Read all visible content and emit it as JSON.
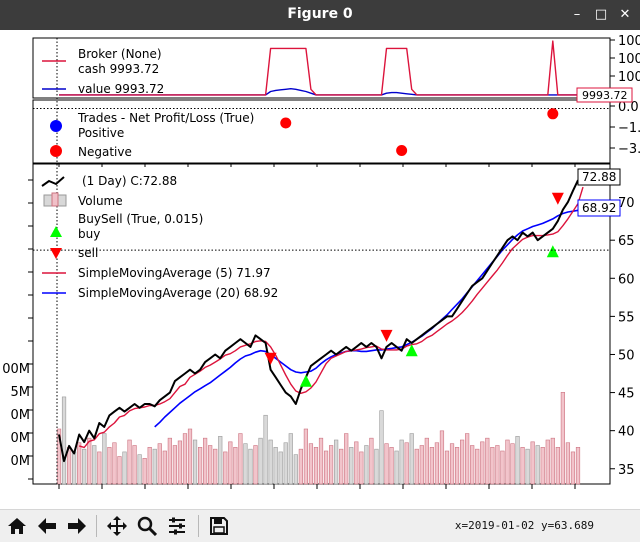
{
  "window": {
    "title": "Figure 0",
    "minimize": "–",
    "maximize": "□",
    "close": "✕"
  },
  "status": {
    "coords": "x=2019-01-02 y=63.689"
  },
  "colors": {
    "accent": "#dc143c",
    "value_line": "#0000cc",
    "price": "#000000",
    "sma5": "#dc143c",
    "sma20": "#0000ff",
    "buy": "#00ff00",
    "sell": "#ff0000",
    "positive": "#0000ff",
    "negative": "#ff0000",
    "volume_up": "#cc7380",
    "volume_down": "#b4b4b4"
  },
  "toolbar": {
    "home": "home-icon",
    "back": "back-arrow-icon",
    "forward": "forward-arrow-icon",
    "pan": "pan-icon",
    "zoom": "zoom-icon",
    "configure": "configure-subplots-icon",
    "save": "save-icon"
  },
  "broker_panel": {
    "legend_title": "Broker (None)",
    "cash_label": "cash 9993.72",
    "value_label": "value 9993.72",
    "badge": "9993.72",
    "yticks": [
      "100",
      "100",
      "100"
    ]
  },
  "trades_panel": {
    "legend_title": "Trades - Net Profit/Loss (True)",
    "positive_label": "Positive",
    "negative_label": "Negative",
    "yticks": [
      "0.0",
      "−1.",
      "−3."
    ]
  },
  "price_panel": {
    "data_label": "(1 Day) C:72.88",
    "volume_label": "Volume",
    "buysell_label": "BuySell (True, 0.015)",
    "buy_label": "buy",
    "sell_label": "sell",
    "sma5_label": "SimpleMovingAverage (5) 71.97",
    "sma20_label": "SimpleMovingAverage (20) 68.92",
    "close_badge": "72.88",
    "sma20_badge": "68.92",
    "yticks": [
      "70",
      "65",
      "60",
      "55",
      "50",
      "45",
      "40",
      "35"
    ],
    "volume_ticks": [
      "00M",
      "5M",
      "0M",
      "0M",
      "0M"
    ]
  },
  "chart_data": {
    "type": "line",
    "title": "",
    "grid": true,
    "price": {
      "ylim": [
        33,
        75
      ],
      "close": [
        39.5,
        36,
        38,
        37,
        39.5,
        38.5,
        40,
        39,
        41,
        40.5,
        42,
        42.5,
        43,
        42.5,
        43,
        43.5,
        43,
        43.5,
        43.5,
        43.2,
        44,
        44.5,
        45,
        46.5,
        47,
        47.5,
        48,
        47.5,
        48,
        49,
        49.5,
        50,
        49.5,
        50.5,
        51,
        51.5,
        52,
        51.5,
        51,
        52.5,
        52,
        51.5,
        48,
        47,
        46,
        45,
        44.5,
        43.5,
        45.5,
        47,
        48.5,
        49,
        49.5,
        50,
        50.5,
        50,
        50.5,
        51,
        50.5,
        51,
        51.5,
        51,
        51.5,
        51,
        49.5,
        51,
        51.5,
        51,
        50.5,
        52,
        51.5,
        52,
        52.5,
        53,
        53.5,
        54,
        54.5,
        55,
        55,
        56,
        57,
        58,
        59,
        59.5,
        60,
        61,
        62,
        63,
        64,
        65,
        65.5,
        65,
        66,
        65.5,
        66,
        65,
        65.5,
        66,
        66.5,
        67.5,
        69,
        70,
        71.5,
        72.88
      ],
      "sma5": [
        null,
        null,
        null,
        null,
        38,
        37.8,
        38.6,
        38.8,
        39.6,
        39.8,
        40.5,
        41,
        41.8,
        42,
        42.6,
        42.9,
        43,
        43.1,
        43.3,
        43.3,
        43.5,
        43.8,
        44.2,
        45,
        45.8,
        46.1,
        47,
        47.4,
        47.8,
        48.3,
        48.6,
        49,
        49.4,
        49.9,
        50.1,
        50.5,
        51,
        51.2,
        51.4,
        51.7,
        51.8,
        51.7,
        51,
        49.9,
        48.6,
        47.3,
        46.1,
        45.2,
        44.9,
        45.1,
        45.6,
        46.4,
        47.6,
        48.8,
        49.5,
        49.8,
        50.1,
        50.4,
        50.5,
        50.6,
        50.7,
        50.9,
        51,
        51.1,
        50.7,
        50.6,
        50.6,
        50.6,
        50.7,
        51.1,
        51.3,
        51.4,
        51.7,
        52.2,
        52.5,
        53,
        53.5,
        54,
        54.4,
        54.9,
        55.5,
        56.2,
        57,
        57.9,
        58.7,
        59.5,
        60.3,
        61.1,
        62,
        63,
        63.9,
        64.5,
        65.1,
        65.4,
        65.6,
        65.6,
        65.6,
        65.7,
        65.8,
        66.1,
        66.9,
        67.8,
        68.8,
        69.8,
        71.97
      ],
      "sma20": [
        null,
        null,
        null,
        null,
        null,
        null,
        null,
        null,
        null,
        null,
        null,
        null,
        null,
        null,
        null,
        null,
        null,
        null,
        null,
        40.5,
        41.1,
        41.8,
        42.4,
        43,
        43.6,
        44.1,
        44.6,
        45.1,
        45.5,
        45.9,
        46.3,
        46.8,
        47.3,
        47.8,
        48.3,
        48.9,
        49.4,
        49.8,
        50,
        50.3,
        50.5,
        50.4,
        50,
        49.5,
        49,
        48.5,
        48,
        47.7,
        47.6,
        47.7,
        47.8,
        48.2,
        48.8,
        49.3,
        49.7,
        50,
        50.2,
        50.4,
        50.5,
        50.5,
        50.4,
        50.4,
        50.5,
        50.6,
        50.6,
        50.7,
        50.8,
        50.9,
        51,
        51.3,
        51.6,
        52,
        52.4,
        52.9,
        53.4,
        54,
        54.6,
        55.2,
        55.9,
        56.6,
        57.3,
        58.1,
        58.9,
        59.7,
        60.5,
        61.3,
        62.1,
        62.9,
        63.7,
        64.4,
        65.1,
        65.7,
        66.2,
        66.5,
        66.8,
        67,
        67.2,
        67.5,
        67.8,
        68.2,
        68.5,
        68.7,
        68.8,
        68.92
      ],
      "buy_signals": [
        {
          "i": 49,
          "price": 48
        },
        {
          "i": 70,
          "price": 52
        },
        {
          "i": 98,
          "price": 65
        }
      ],
      "sell_signals": [
        {
          "i": 42,
          "price": 48
        },
        {
          "i": 65,
          "price": 51
        },
        {
          "i": 99,
          "price": 69
        }
      ],
      "horizontal_line": 63.689
    },
    "volume": [
      60,
      95,
      40,
      35,
      45,
      38,
      50,
      42,
      35,
      55,
      40,
      45,
      30,
      35,
      48,
      42,
      32,
      28,
      40,
      38,
      44,
      36,
      50,
      42,
      47,
      55,
      60,
      48,
      40,
      50,
      42,
      38,
      52,
      35,
      46,
      40,
      55,
      44,
      38,
      42,
      50,
      75,
      48,
      40,
      35,
      45,
      55,
      32,
      38,
      60,
      44,
      40,
      50,
      36,
      42,
      48,
      38,
      55,
      40,
      46,
      35,
      42,
      50,
      38,
      80,
      44,
      40,
      36,
      48,
      45,
      55,
      38,
      42,
      50,
      40,
      45,
      58,
      36,
      44,
      40,
      48,
      55,
      42,
      38,
      46,
      50,
      40,
      42,
      36,
      48,
      44,
      52,
      40,
      38,
      46,
      42,
      40,
      48,
      50,
      40,
      100,
      45,
      35,
      40
    ],
    "volume_ylim": [
      0,
      120
    ],
    "broker": {
      "ylim": [
        0,
        100
      ],
      "cash": [
        2,
        2,
        2,
        2,
        2,
        2,
        2,
        2,
        2,
        2,
        2,
        2,
        2,
        2,
        2,
        2,
        2,
        2,
        2,
        2,
        2,
        2,
        2,
        2,
        2,
        2,
        2,
        2,
        2,
        2,
        2,
        2,
        2,
        2,
        2,
        2,
        2,
        2,
        2,
        2,
        2,
        2,
        85,
        85,
        85,
        85,
        85,
        85,
        85,
        85,
        12,
        2,
        2,
        2,
        2,
        2,
        2,
        2,
        2,
        2,
        2,
        2,
        2,
        2,
        2,
        85,
        85,
        85,
        85,
        85,
        12,
        2,
        2,
        2,
        2,
        2,
        2,
        2,
        2,
        2,
        2,
        2,
        2,
        2,
        2,
        2,
        2,
        2,
        2,
        2,
        2,
        2,
        2,
        2,
        2,
        2,
        2,
        2,
        98,
        2,
        2,
        2,
        2,
        2
      ],
      "value": [
        2,
        2,
        2,
        2,
        2,
        2,
        2,
        2,
        2,
        2,
        2,
        2,
        2,
        2,
        2,
        2,
        2,
        2,
        2,
        2,
        2,
        2,
        2,
        2,
        2,
        2,
        2,
        2,
        2,
        2,
        2,
        2,
        2,
        2,
        2,
        2,
        2,
        2,
        2,
        2,
        2,
        2,
        8,
        10,
        11,
        12,
        13,
        12,
        10,
        8,
        5,
        2,
        2,
        2,
        2,
        2,
        2,
        2,
        2,
        2,
        2,
        2,
        2,
        2,
        2,
        5,
        6,
        6,
        5,
        4,
        3,
        2,
        2,
        2,
        2,
        2,
        2,
        2,
        2,
        2,
        2,
        2,
        2,
        2,
        2,
        2,
        2,
        2,
        2,
        2,
        2,
        2,
        2,
        2,
        2,
        2,
        2,
        2,
        2,
        2,
        2,
        2,
        2,
        2
      ]
    },
    "trades": {
      "ylim": [
        -4,
        0.5
      ],
      "positive": [],
      "negative": [
        {
          "i": 45,
          "value": -1.1
        },
        {
          "i": 68,
          "value": -3.2
        },
        {
          "i": 98,
          "value": -0.4
        }
      ]
    }
  }
}
